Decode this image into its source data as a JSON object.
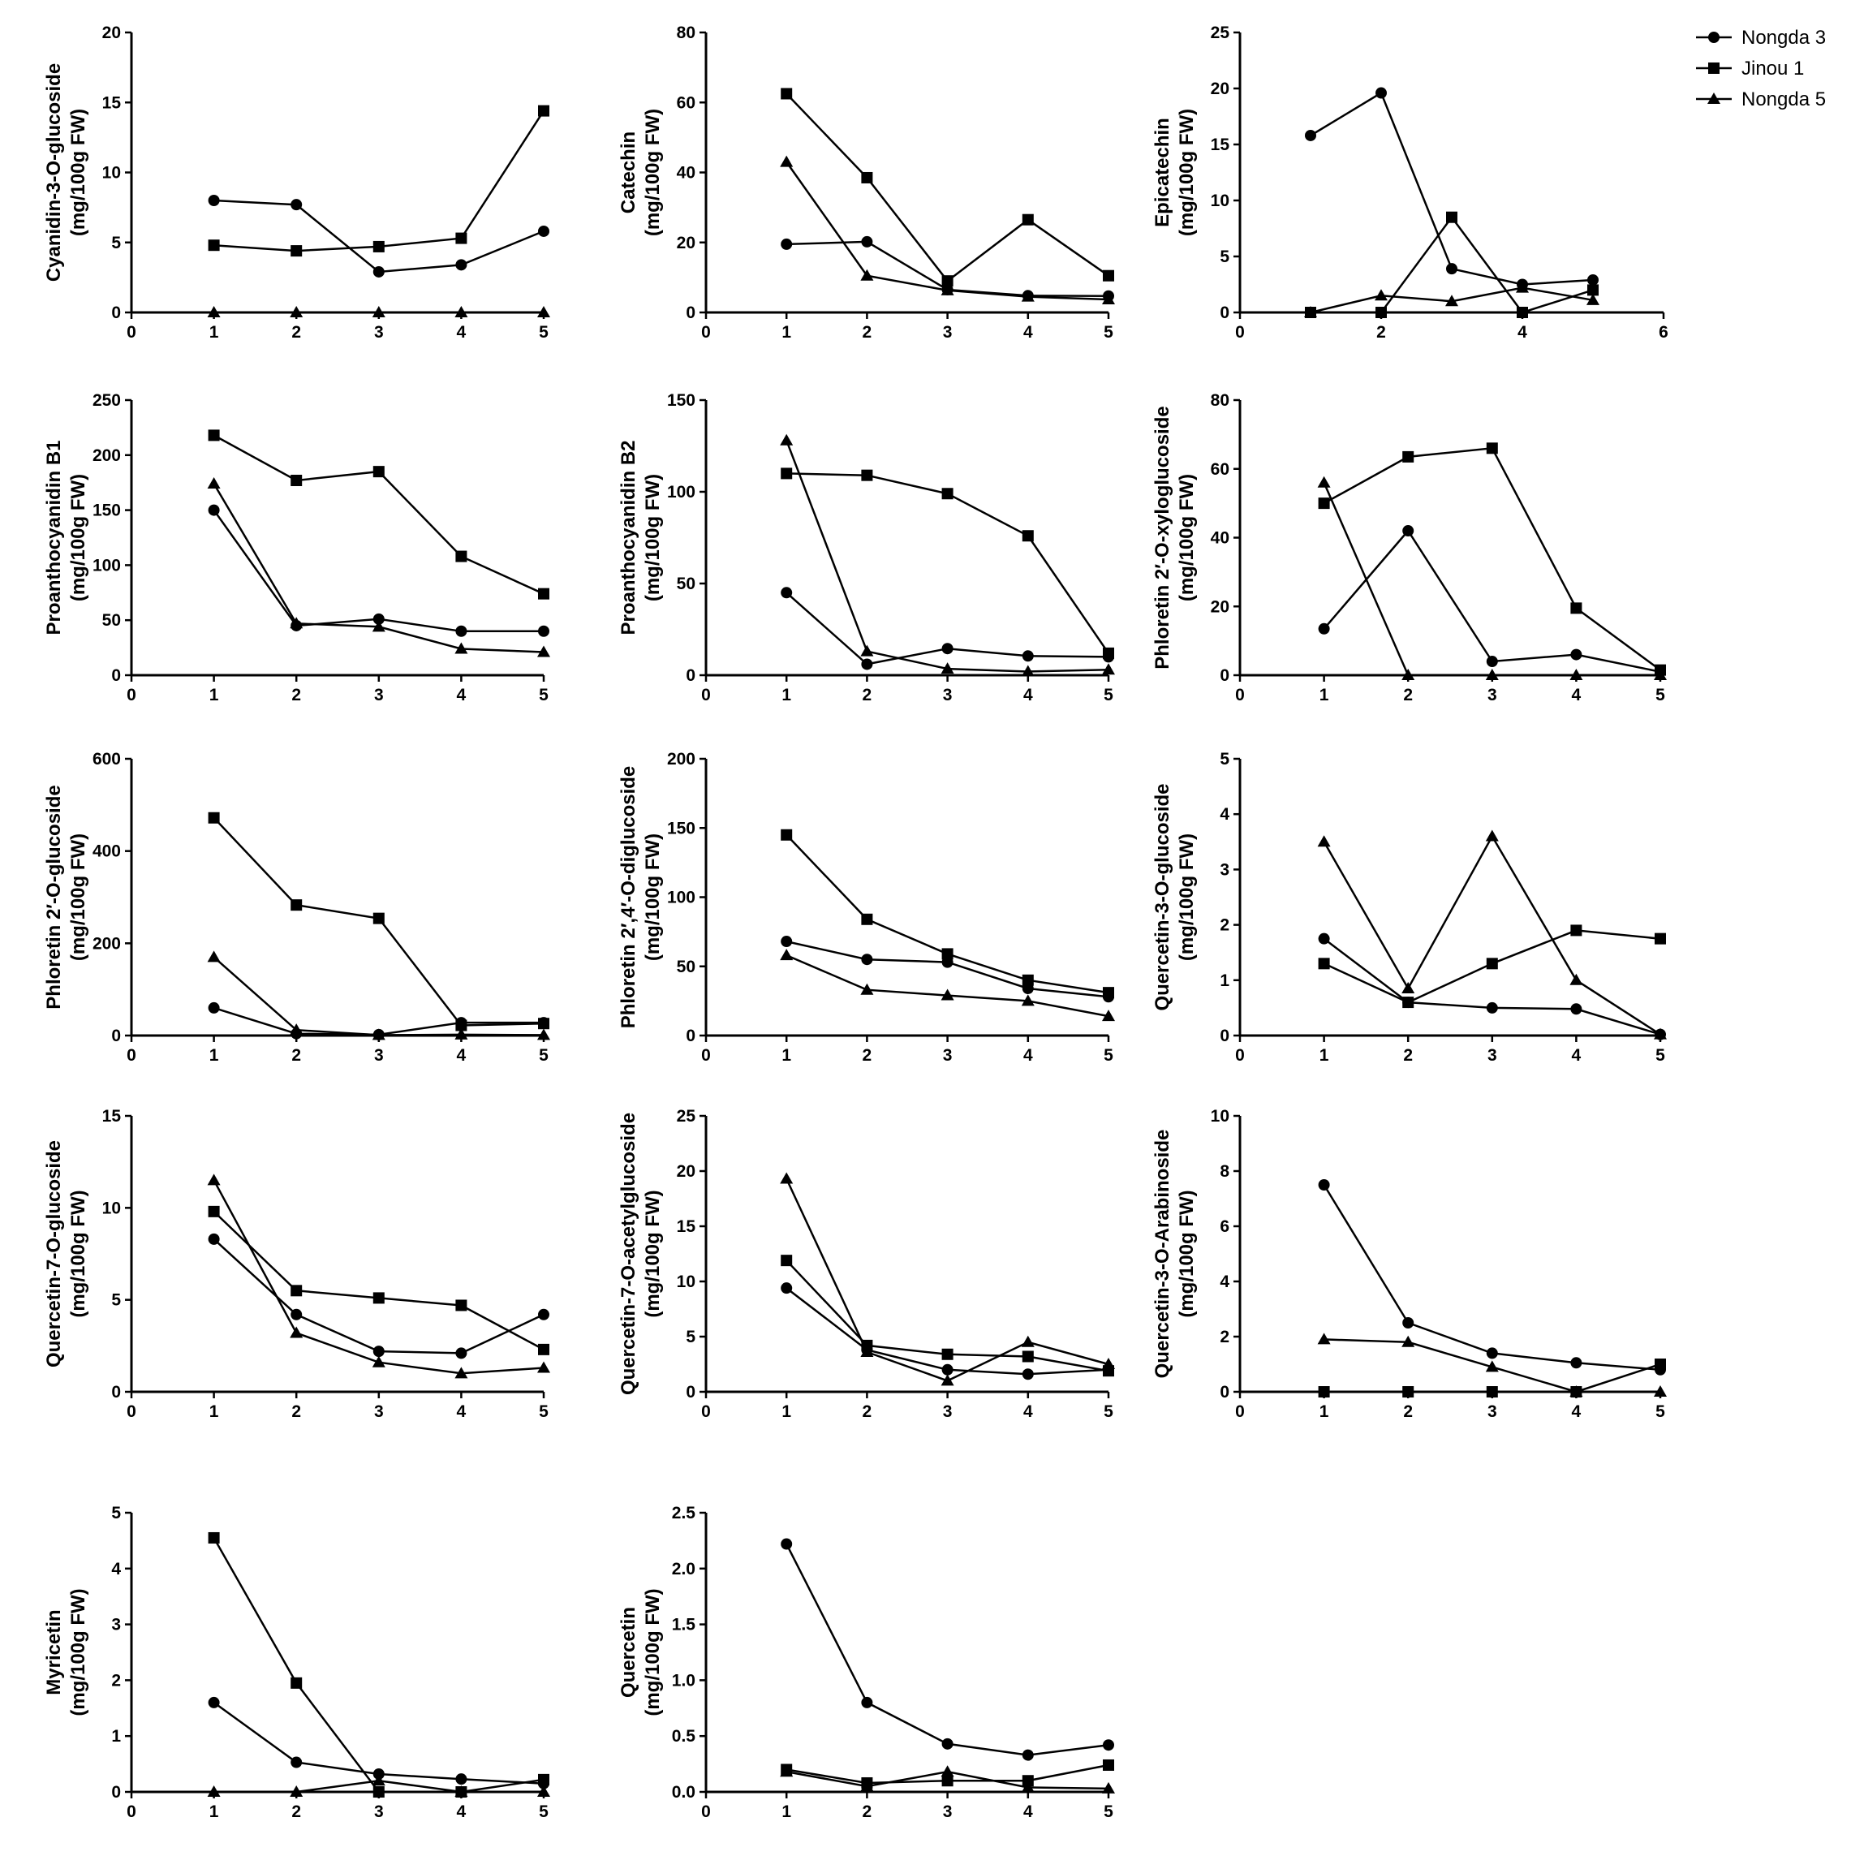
{
  "legend": {
    "entries": [
      {
        "name": "Nongda 3",
        "marker": "circle"
      },
      {
        "name": "Jinou 1",
        "marker": "square"
      },
      {
        "name": "Nongda 5",
        "marker": "triangle"
      }
    ]
  },
  "chart_data": [
    {
      "type": "line",
      "title": "",
      "ylabel_line1": "Cyanidin-3-O-glucoside",
      "ylabel_line2": "(mg/100g FW)",
      "x": [
        1,
        2,
        3,
        4,
        5
      ],
      "xlim": [
        0,
        5
      ],
      "xticks": [
        0,
        1,
        2,
        3,
        4,
        5
      ],
      "ylim": [
        0,
        20
      ],
      "yticks": [
        0,
        5,
        10,
        15,
        20
      ],
      "series": [
        {
          "name": "Nongda 3",
          "values": [
            8.0,
            7.7,
            2.9,
            3.4,
            5.8
          ]
        },
        {
          "name": "Jinou 1",
          "values": [
            4.8,
            4.4,
            4.7,
            5.3,
            14.4
          ]
        },
        {
          "name": "Nongda 5",
          "values": [
            0,
            0,
            0,
            0,
            0
          ]
        }
      ]
    },
    {
      "type": "line",
      "title": "",
      "ylabel_line1": "Catechin",
      "ylabel_line2": "(mg/100g FW)",
      "x": [
        1,
        2,
        3,
        4,
        5
      ],
      "xlim": [
        0,
        5
      ],
      "xticks": [
        0,
        1,
        2,
        3,
        4,
        5
      ],
      "ylim": [
        0,
        80
      ],
      "yticks": [
        0,
        20,
        40,
        60,
        80
      ],
      "series": [
        {
          "name": "Nongda 3",
          "values": [
            19.5,
            20.2,
            6.5,
            4.8,
            4.7
          ]
        },
        {
          "name": "Jinou 1",
          "values": [
            62.5,
            38.5,
            9.0,
            26.5,
            10.5
          ]
        },
        {
          "name": "Nongda 5",
          "values": [
            43.0,
            10.5,
            6.3,
            4.5,
            3.7
          ]
        }
      ]
    },
    {
      "type": "line",
      "title": "",
      "ylabel_line1": "Epicatechin",
      "ylabel_line2": "(mg/100g FW)",
      "x": [
        1,
        2,
        3,
        4,
        5
      ],
      "xlim": [
        0,
        6
      ],
      "xticks": [
        0,
        2,
        4,
        6
      ],
      "ylim": [
        0,
        25
      ],
      "yticks": [
        0,
        5,
        10,
        15,
        20,
        25
      ],
      "series": [
        {
          "name": "Nongda 3",
          "values": [
            15.8,
            19.6,
            3.9,
            2.5,
            2.9
          ]
        },
        {
          "name": "Jinou 1",
          "values": [
            0,
            0,
            8.5,
            0,
            2.0
          ]
        },
        {
          "name": "Nongda 5",
          "values": [
            0,
            1.5,
            1.0,
            2.2,
            1.1
          ]
        }
      ]
    },
    {
      "type": "line",
      "title": "",
      "ylabel_line1": "Proanthocyanidin B1",
      "ylabel_line2": "(mg/100g FW)",
      "x": [
        1,
        2,
        3,
        4,
        5
      ],
      "xlim": [
        0,
        5
      ],
      "xticks": [
        0,
        1,
        2,
        3,
        4,
        5
      ],
      "ylim": [
        0,
        250
      ],
      "yticks": [
        0,
        50,
        100,
        150,
        200,
        250
      ],
      "series": [
        {
          "name": "Nongda 3",
          "values": [
            150,
            45,
            51,
            40,
            40
          ]
        },
        {
          "name": "Jinou 1",
          "values": [
            218,
            177,
            185,
            108,
            74
          ]
        },
        {
          "name": "Nongda 5",
          "values": [
            174,
            47,
            44,
            24,
            21
          ]
        }
      ]
    },
    {
      "type": "line",
      "title": "",
      "ylabel_line1": "Proanthocyanidin B2",
      "ylabel_line2": "(mg/100g FW)",
      "x": [
        1,
        2,
        3,
        4,
        5
      ],
      "xlim": [
        0,
        5
      ],
      "xticks": [
        0,
        1,
        2,
        3,
        4,
        5
      ],
      "ylim": [
        0,
        150
      ],
      "yticks": [
        0,
        50,
        100,
        150
      ],
      "series": [
        {
          "name": "Nongda 3",
          "values": [
            45,
            6,
            14.5,
            10.5,
            10
          ]
        },
        {
          "name": "Jinou 1",
          "values": [
            110,
            109,
            99,
            76,
            12
          ]
        },
        {
          "name": "Nongda 5",
          "values": [
            128,
            13,
            3.5,
            2,
            3
          ]
        }
      ]
    },
    {
      "type": "line",
      "title": "",
      "ylabel_line1": "Phloretin 2′-O-xyloglucoside",
      "ylabel_line2": "(mg/100g FW)",
      "x": [
        1,
        2,
        3,
        4,
        5
      ],
      "xlim": [
        0,
        5
      ],
      "xticks": [
        0,
        1,
        2,
        3,
        4,
        5
      ],
      "ylim": [
        0,
        80
      ],
      "yticks": [
        0,
        20,
        40,
        60,
        80
      ],
      "series": [
        {
          "name": "Nongda 3",
          "values": [
            13.5,
            42,
            4,
            6,
            1
          ]
        },
        {
          "name": "Jinou 1",
          "values": [
            50,
            63.5,
            66,
            19.5,
            1.5
          ]
        },
        {
          "name": "Nongda 5",
          "values": [
            56,
            0,
            0,
            0,
            0
          ]
        }
      ]
    },
    {
      "type": "line",
      "title": "",
      "ylabel_line1": "Phloretin 2′-O-glucoside",
      "ylabel_line2": "(mg/100g FW)",
      "x": [
        1,
        2,
        3,
        4,
        5
      ],
      "xlim": [
        0,
        5
      ],
      "xticks": [
        0,
        1,
        2,
        3,
        4,
        5
      ],
      "ylim": [
        0,
        600
      ],
      "yticks": [
        0,
        200,
        400,
        600
      ],
      "series": [
        {
          "name": "Nongda 3",
          "values": [
            60,
            4,
            2,
            28,
            28
          ]
        },
        {
          "name": "Jinou 1",
          "values": [
            472,
            283,
            254,
            22,
            26
          ]
        },
        {
          "name": "Nongda 5",
          "values": [
            170,
            12,
            1,
            2,
            1
          ]
        }
      ]
    },
    {
      "type": "line",
      "title": "",
      "ylabel_line1": "Phloretin 2′,4′-O-diglucoside",
      "ylabel_line2": "(mg/100g FW)",
      "x": [
        1,
        2,
        3,
        4,
        5
      ],
      "xlim": [
        0,
        5
      ],
      "xticks": [
        0,
        1,
        2,
        3,
        4,
        5
      ],
      "ylim": [
        0,
        200
      ],
      "yticks": [
        0,
        50,
        100,
        150,
        200
      ],
      "series": [
        {
          "name": "Nongda 3",
          "values": [
            68,
            55,
            53,
            34,
            28
          ]
        },
        {
          "name": "Jinou 1",
          "values": [
            145,
            84,
            59,
            40,
            31
          ]
        },
        {
          "name": "Nongda 5",
          "values": [
            58,
            33,
            29,
            25,
            14
          ]
        }
      ]
    },
    {
      "type": "line",
      "title": "",
      "ylabel_line1": "Quercetin-3-O-glucoside",
      "ylabel_line2": "(mg/100g FW)",
      "x": [
        1,
        2,
        3,
        4,
        5
      ],
      "xlim": [
        0,
        5
      ],
      "xticks": [
        0,
        1,
        2,
        3,
        4,
        5
      ],
      "ylim": [
        0,
        5
      ],
      "yticks": [
        0,
        1,
        2,
        3,
        4,
        5
      ],
      "series": [
        {
          "name": "Nongda 3",
          "values": [
            1.75,
            0.6,
            0.5,
            0.48,
            0.02
          ]
        },
        {
          "name": "Jinou 1",
          "values": [
            1.3,
            0.6,
            1.3,
            1.9,
            1.75
          ]
        },
        {
          "name": "Nongda 5",
          "values": [
            3.5,
            0.85,
            3.6,
            1.0,
            0.02
          ]
        }
      ]
    },
    {
      "type": "line",
      "title": "",
      "ylabel_line1": "Quercetin-7-O-glucoside",
      "ylabel_line2": "(mg/100g FW)",
      "x": [
        1,
        2,
        3,
        4,
        5
      ],
      "xlim": [
        0,
        5
      ],
      "xticks": [
        0,
        1,
        2,
        3,
        4,
        5
      ],
      "ylim": [
        0,
        15
      ],
      "yticks": [
        0,
        5,
        10,
        15
      ],
      "series": [
        {
          "name": "Nongda 3",
          "values": [
            8.3,
            4.2,
            2.2,
            2.1,
            4.2
          ]
        },
        {
          "name": "Jinou 1",
          "values": [
            9.8,
            5.5,
            5.1,
            4.7,
            2.3
          ]
        },
        {
          "name": "Nongda 5",
          "values": [
            11.5,
            3.2,
            1.6,
            1.0,
            1.3
          ]
        }
      ]
    },
    {
      "type": "line",
      "title": "",
      "ylabel_line1": "Quercetin-7-O-acetylglucoside",
      "ylabel_line2": "(mg/100g FW)",
      "x": [
        1,
        2,
        3,
        4,
        5
      ],
      "xlim": [
        0,
        5
      ],
      "xticks": [
        0,
        1,
        2,
        3,
        4,
        5
      ],
      "ylim": [
        0,
        25
      ],
      "yticks": [
        0,
        5,
        10,
        15,
        20,
        25
      ],
      "series": [
        {
          "name": "Nongda 3",
          "values": [
            9.4,
            3.8,
            2.0,
            1.6,
            2.0
          ]
        },
        {
          "name": "Jinou 1",
          "values": [
            11.9,
            4.2,
            3.4,
            3.2,
            1.9
          ]
        },
        {
          "name": "Nongda 5",
          "values": [
            19.3,
            3.6,
            1.0,
            4.5,
            2.5
          ]
        }
      ]
    },
    {
      "type": "line",
      "title": "",
      "ylabel_line1": "Quercetin-3-O-Arabinoside",
      "ylabel_line2": "(mg/100g FW)",
      "x": [
        1,
        2,
        3,
        4,
        5
      ],
      "xlim": [
        0,
        5
      ],
      "xticks": [
        0,
        1,
        2,
        3,
        4,
        5
      ],
      "ylim": [
        0,
        10
      ],
      "yticks": [
        0,
        2,
        4,
        6,
        8,
        10
      ],
      "series": [
        {
          "name": "Nongda 3",
          "values": [
            7.5,
            2.5,
            1.4,
            1.05,
            0.8
          ]
        },
        {
          "name": "Jinou 1",
          "values": [
            0,
            0,
            0,
            0,
            1.0
          ]
        },
        {
          "name": "Nongda 5",
          "values": [
            1.9,
            1.8,
            0.9,
            0,
            0
          ]
        }
      ]
    },
    {
      "type": "line",
      "title": "",
      "ylabel_line1": "Myricetin",
      "ylabel_line2": "(mg/100g FW)",
      "x": [
        1,
        2,
        3,
        4,
        5
      ],
      "xlim": [
        0,
        5
      ],
      "xticks": [
        0,
        1,
        2,
        3,
        4,
        5
      ],
      "ylim": [
        0,
        5
      ],
      "yticks": [
        0,
        1,
        2,
        3,
        4,
        5
      ],
      "series": [
        {
          "name": "Nongda 3",
          "values": [
            1.6,
            0.53,
            0.32,
            0.23,
            0.15
          ]
        },
        {
          "name": "Jinou 1",
          "values": [
            4.55,
            1.95,
            0,
            0,
            0.22
          ]
        },
        {
          "name": "Nongda 5",
          "values": [
            0,
            0,
            0.2,
            0,
            0
          ]
        }
      ]
    },
    {
      "type": "line",
      "title": "",
      "ylabel_line1": "Quercetin",
      "ylabel_line2": "(mg/100g FW)",
      "x": [
        1,
        2,
        3,
        4,
        5
      ],
      "xlim": [
        0,
        5
      ],
      "xticks": [
        0,
        1,
        2,
        3,
        4,
        5
      ],
      "ylim": [
        0,
        2.5
      ],
      "yticks": [
        "0.0",
        "0.5",
        "1.0",
        "1.5",
        "2.0",
        "2.5"
      ],
      "series": [
        {
          "name": "Nongda 3",
          "values": [
            2.22,
            0.8,
            0.43,
            0.33,
            0.42
          ]
        },
        {
          "name": "Jinou 1",
          "values": [
            0.2,
            0.08,
            0.1,
            0.1,
            0.24
          ]
        },
        {
          "name": "Nongda 5",
          "values": [
            0.18,
            0.05,
            0.18,
            0.04,
            0.03
          ]
        }
      ]
    }
  ]
}
